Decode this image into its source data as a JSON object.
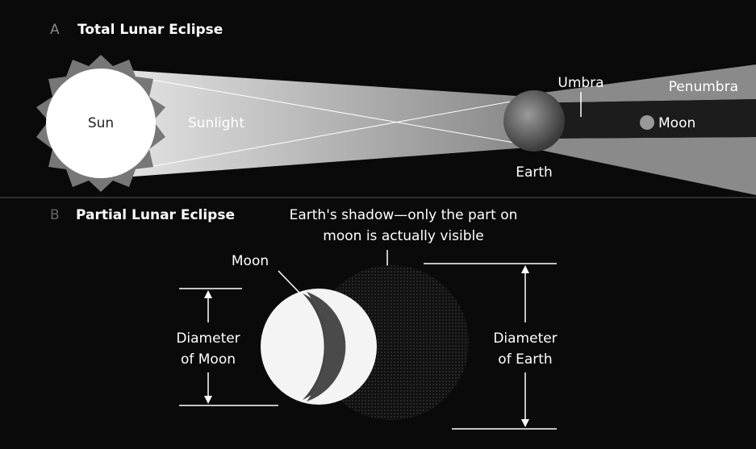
{
  "panel_a": {
    "letter": "A",
    "title": "Total Lunar Eclipse",
    "labels": {
      "sun": "Sun",
      "sunlight": "Sunlight",
      "umbra": "Umbra",
      "penumbra": "Penumbra",
      "moon": "Moon",
      "earth": "Earth"
    }
  },
  "panel_b": {
    "letter": "B",
    "title": "Partial Lunar Eclipse",
    "shadow_note": [
      "Earth's shadow—only the part on",
      "moon is actually visible"
    ],
    "moon": "Moon",
    "moon_diameter": [
      "Diameter",
      "of Moon"
    ],
    "earth_diameter": [
      "Diameter",
      "of Earth"
    ]
  }
}
